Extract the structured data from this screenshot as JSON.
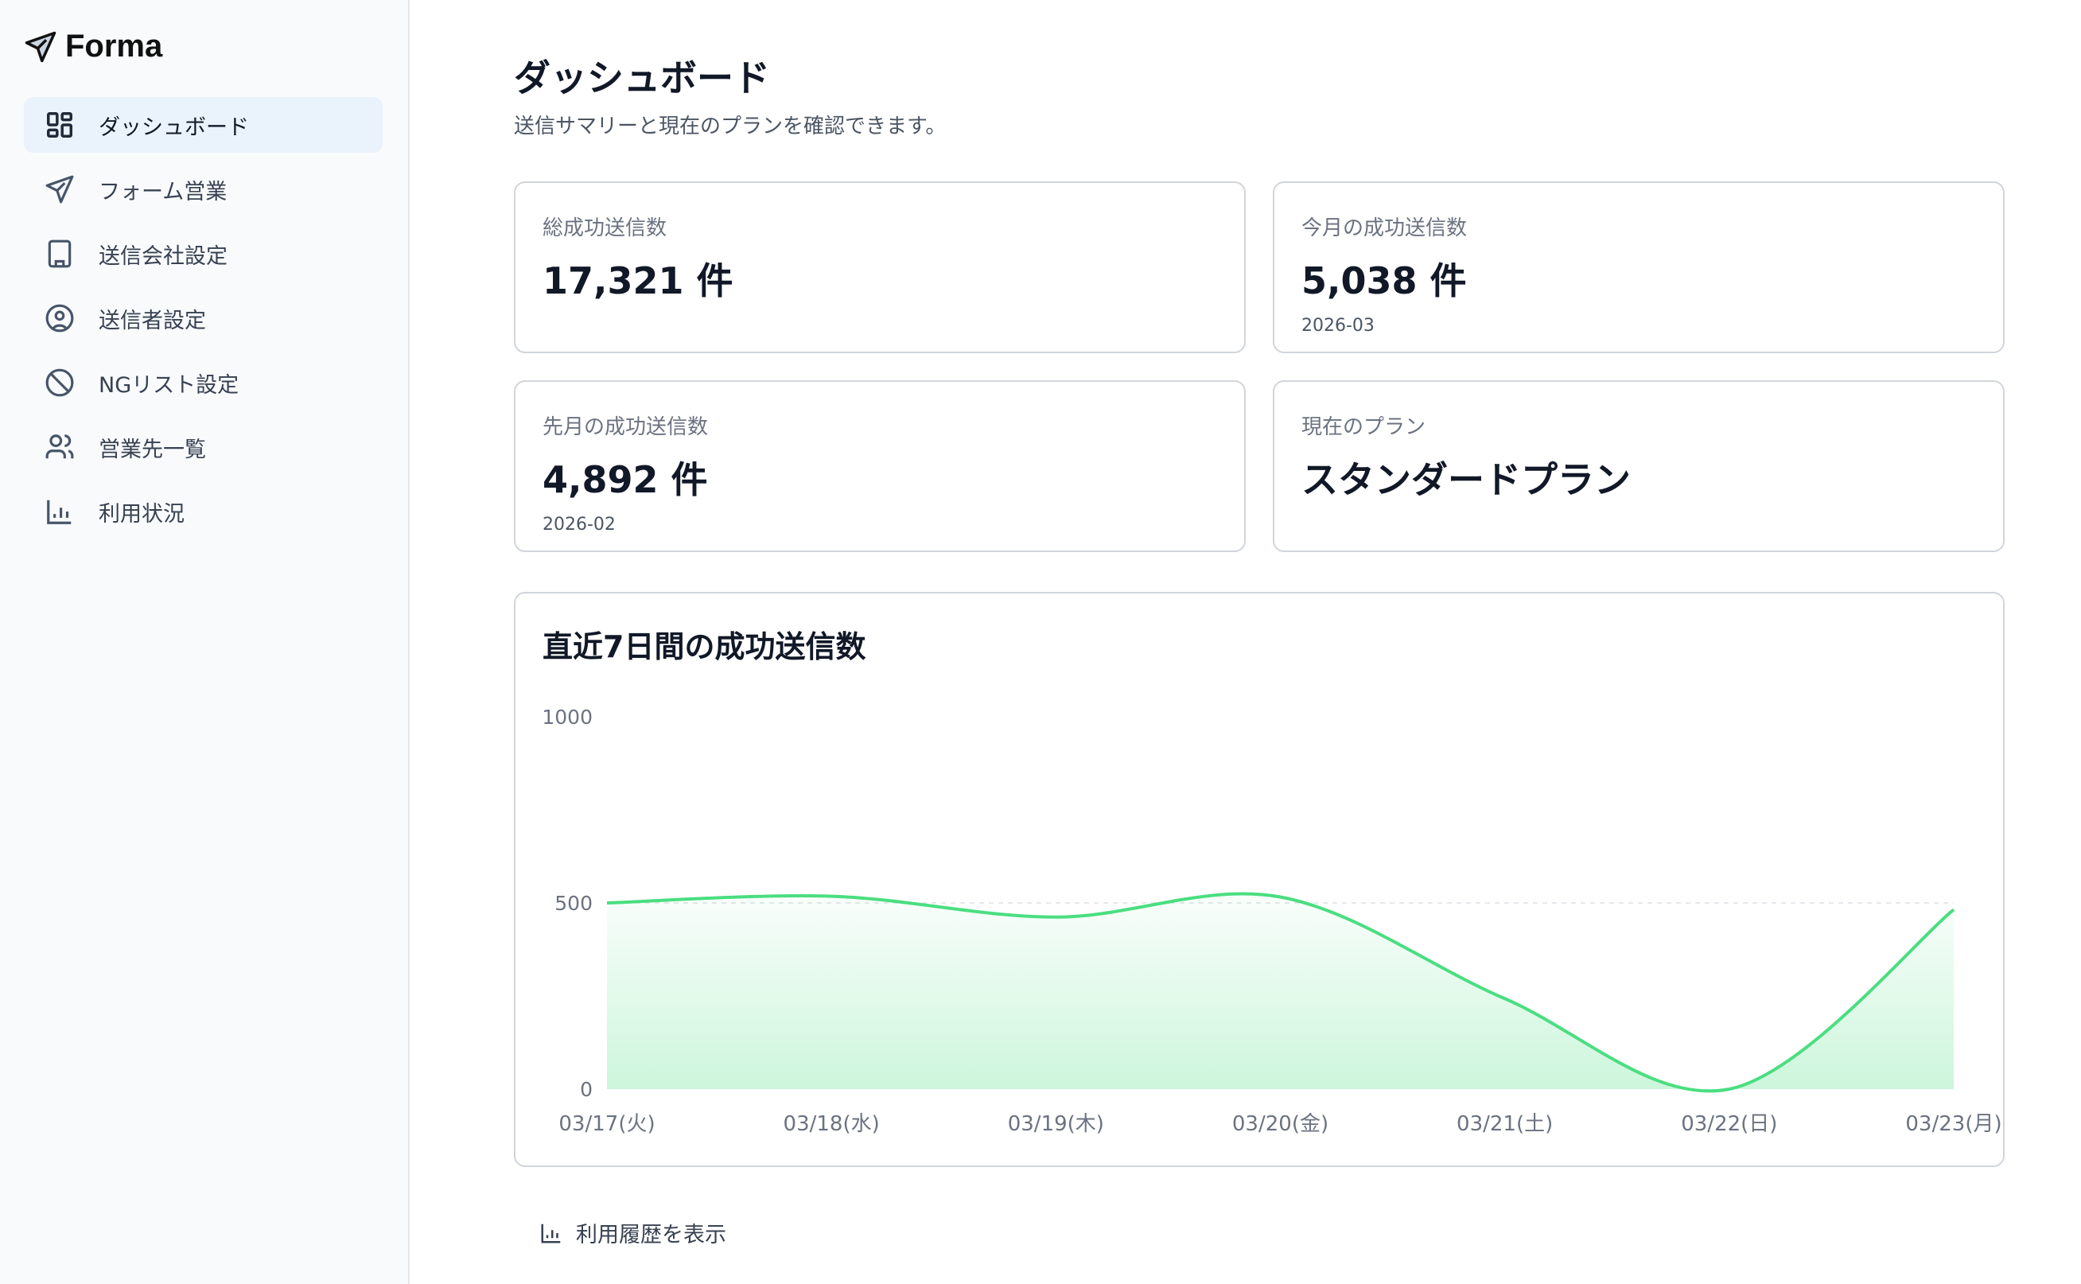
{
  "app": {
    "name": "Forma",
    "logo_icon": "paper-plane-icon"
  },
  "sidebar": {
    "items": [
      {
        "label": "ダッシュボード",
        "icon": "grid-icon",
        "active": true
      },
      {
        "label": "フォーム営業",
        "icon": "send-icon"
      },
      {
        "label": "送信会社設定",
        "icon": "building-icon"
      },
      {
        "label": "送信者設定",
        "icon": "user-circle-icon"
      },
      {
        "label": "NGリスト設定",
        "icon": "ban-icon"
      },
      {
        "label": "営業先一覧",
        "icon": "users-icon"
      },
      {
        "label": "利用状況",
        "icon": "bar-chart-icon"
      }
    ]
  },
  "header": {
    "title": "ダッシュボード",
    "subtitle": "送信サマリーと現在のプランを確認できます。"
  },
  "cards": [
    {
      "label": "総成功送信数",
      "value": "17,321 件",
      "sub": ""
    },
    {
      "label": "今月の成功送信数",
      "value": "5,038 件",
      "sub": "2026-03"
    },
    {
      "label": "先月の成功送信数",
      "value": "4,892 件",
      "sub": "2026-02"
    },
    {
      "label": "現在のプラン",
      "value": "スタンダードプラン",
      "sub": ""
    }
  ],
  "chart_data": {
    "type": "area",
    "title": "直近7日間の成功送信数",
    "categories": [
      "03/17(火)",
      "03/18(水)",
      "03/19(木)",
      "03/20(金)",
      "03/21(土)",
      "03/22(日)",
      "03/23(月)"
    ],
    "values": [
      500,
      518,
      462,
      516,
      243,
      0,
      482
    ],
    "ylim": [
      0,
      1000
    ],
    "yticks": [
      "0",
      "500",
      "1000"
    ],
    "grid": "dashed line at 500",
    "color": "#4ade80"
  },
  "footer": {
    "link_label": "利用履歴を表示"
  }
}
